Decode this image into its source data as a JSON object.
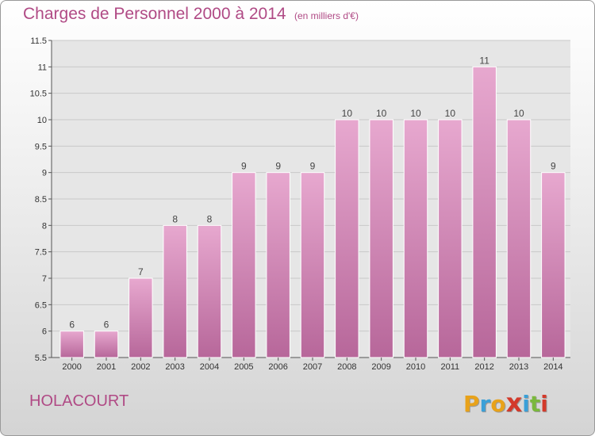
{
  "header": {
    "title": "Charges de Personnel 2000 à 2014",
    "subtitle": "(en milliers d'€)"
  },
  "footer": {
    "commune": "HOLACOURT",
    "brand": "Proxiti",
    "brand_colors": [
      "#e8a21a",
      "#3aa0d8",
      "#e8a21a",
      "#d33a2b",
      "#3aa0d8",
      "#7ab83c",
      "#d33a2b"
    ]
  },
  "colors": {
    "title": "#b04a85",
    "bar_top": "#e7a8cf",
    "bar_bottom": "#b7679a",
    "grid": "#c8c8c8"
  },
  "chart_data": {
    "type": "bar",
    "title": "Charges de Personnel 2000 à 2014",
    "subtitle": "(en milliers d'€)",
    "categories": [
      "2000",
      "2001",
      "2002",
      "2003",
      "2004",
      "2005",
      "2006",
      "2007",
      "2008",
      "2009",
      "2010",
      "2011",
      "2012",
      "2013",
      "2014"
    ],
    "values": [
      6,
      6,
      7,
      8,
      8,
      9,
      9,
      9,
      10,
      10,
      10,
      10,
      11,
      10,
      9
    ],
    "ylim": [
      5.5,
      11.5
    ],
    "yticks": [
      "5.5",
      "6",
      "6.5",
      "7",
      "7.5",
      "8",
      "8.5",
      "9",
      "9.5",
      "10",
      "10.5",
      "11",
      "11.5"
    ],
    "grid": true,
    "xlabel": "",
    "ylabel": ""
  }
}
